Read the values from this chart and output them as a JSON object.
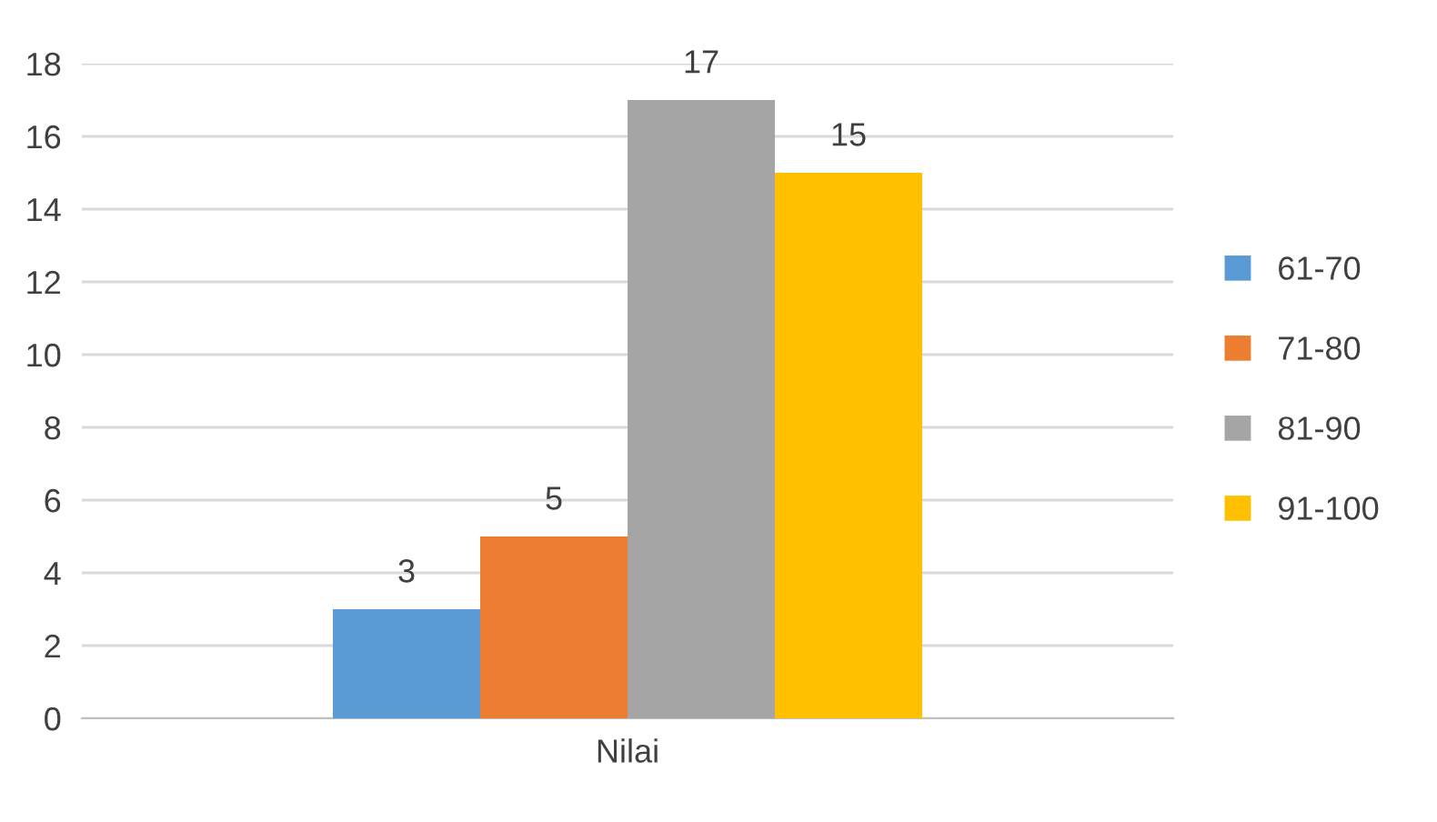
{
  "chart_data": {
    "type": "bar",
    "categories": [
      "Nilai"
    ],
    "series": [
      {
        "name": "61-70",
        "color": "#5b9bd5",
        "values": [
          3
        ]
      },
      {
        "name": "71-80",
        "color": "#ed7d31",
        "values": [
          5
        ]
      },
      {
        "name": "81-90",
        "color": "#a5a5a5",
        "values": [
          17
        ]
      },
      {
        "name": "91-100",
        "color": "#ffc000",
        "values": [
          15
        ]
      }
    ],
    "ylim": [
      0,
      18
    ],
    "yticks": [
      0,
      2,
      4,
      6,
      8,
      10,
      12,
      14,
      16,
      18
    ],
    "grid": "y",
    "legend": "right",
    "data_labels": true
  }
}
